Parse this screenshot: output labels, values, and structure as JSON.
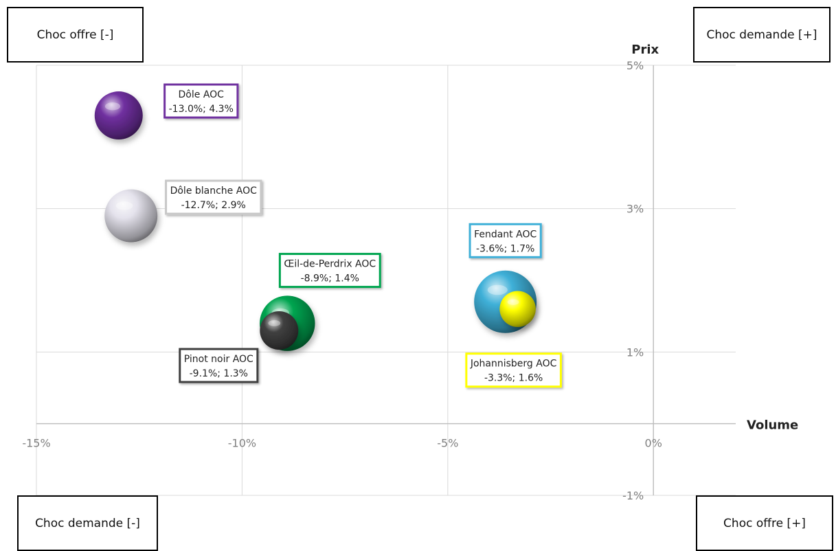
{
  "quadrants": {
    "top_left": "Choc offre [-]",
    "top_right": "Choc demande [+]",
    "bottom_left": "Choc demande [-]",
    "bottom_right": "Choc offre [+]"
  },
  "chart_data": {
    "type": "scatter",
    "xlabel": "Volume",
    "ylabel": "Prix",
    "xlim": [
      -15,
      2
    ],
    "ylim": [
      -1,
      5
    ],
    "x_ticks": [
      {
        "value": -15,
        "label": "-15%"
      },
      {
        "value": -10,
        "label": "-10%"
      },
      {
        "value": -5,
        "label": "-5%"
      },
      {
        "value": 0,
        "label": "0%"
      }
    ],
    "y_ticks": [
      {
        "value": 5,
        "label": "5%"
      },
      {
        "value": 3,
        "label": "3%"
      },
      {
        "value": 1,
        "label": "1%"
      },
      {
        "value": -1,
        "label": "-1%"
      }
    ],
    "grid": true,
    "points": [
      {
        "name": "Dôle AOC",
        "value_label": "-13.0%; 4.3%",
        "x": -13.0,
        "y": 4.3,
        "size": 1.0,
        "color": "#7030a0"
      },
      {
        "name": "Dôle blanche AOC",
        "value_label": "-12.7%; 2.9%",
        "x": -12.7,
        "y": 2.9,
        "size": 1.1,
        "color": "#e4e2ec"
      },
      {
        "name": "Œil-de-Perdrix AOC",
        "value_label": "-8.9%; 1.4%",
        "x": -8.9,
        "y": 1.4,
        "size": 1.15,
        "color": "#00a550"
      },
      {
        "name": "Pinot noir AOC",
        "value_label": "-9.1%; 1.3%",
        "x": -9.1,
        "y": 1.3,
        "size": 0.8,
        "color": "#404040"
      },
      {
        "name": "Fendant AOC",
        "value_label": "-3.6%; 1.7%",
        "x": -3.6,
        "y": 1.7,
        "size": 1.3,
        "color": "#3fb0d8"
      },
      {
        "name": "Johannisberg AOC",
        "value_label": "-3.3%; 1.6%",
        "x": -3.3,
        "y": 1.6,
        "size": 0.75,
        "color": "#ffff00"
      }
    ]
  }
}
